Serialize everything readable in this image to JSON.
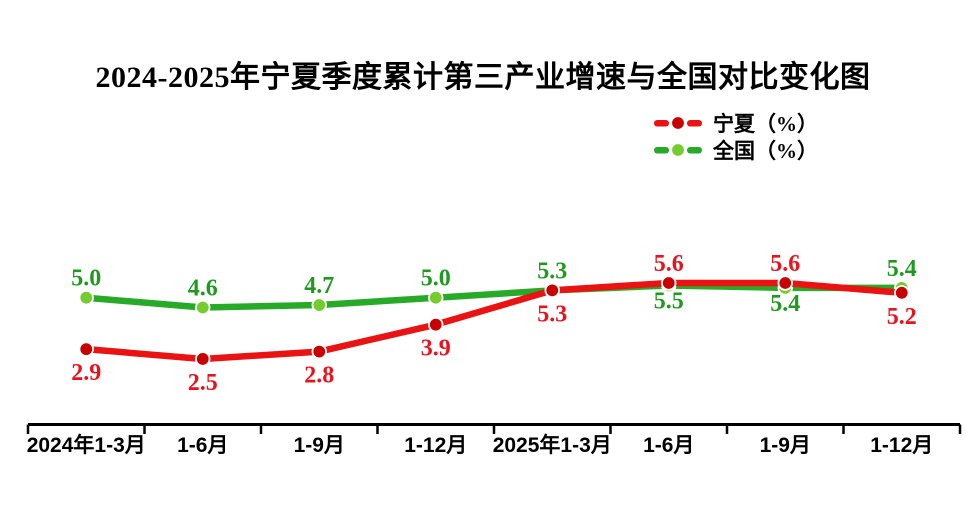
{
  "title": "2024-2025年宁夏季度累计第三产业增速与全国对比变化图",
  "chart_data": {
    "type": "line",
    "title": "2024-2025年宁夏季度累计第三产业增速与全国对比变化图",
    "categories": [
      "2024年1-3月",
      "1-6月",
      "1-9月",
      "1-12月",
      "2025年1-3月",
      "1-6月",
      "1-9月",
      "1-12月"
    ],
    "series": [
      {
        "key": "ningxia",
        "name": "宁夏（%）",
        "values": [
          2.9,
          2.5,
          2.8,
          3.9,
          5.3,
          5.6,
          5.6,
          5.2
        ],
        "line_color": "#e91313",
        "marker_color": "#c80000",
        "label_color": "#e8131d"
      },
      {
        "key": "national",
        "name": "全国（%）",
        "values": [
          5.0,
          4.6,
          4.7,
          5.0,
          5.3,
          5.5,
          5.4,
          5.4
        ],
        "line_color": "#27aa27",
        "marker_color": "#74cc2e",
        "label_color": "#1f9a1f"
      }
    ],
    "xlabel": "",
    "ylabel": "",
    "value_labels": true,
    "value_label_format": "0.0",
    "legend_position": "top-right",
    "y_axis_visible": false,
    "gridlines": false,
    "axis_color": "#000000"
  }
}
